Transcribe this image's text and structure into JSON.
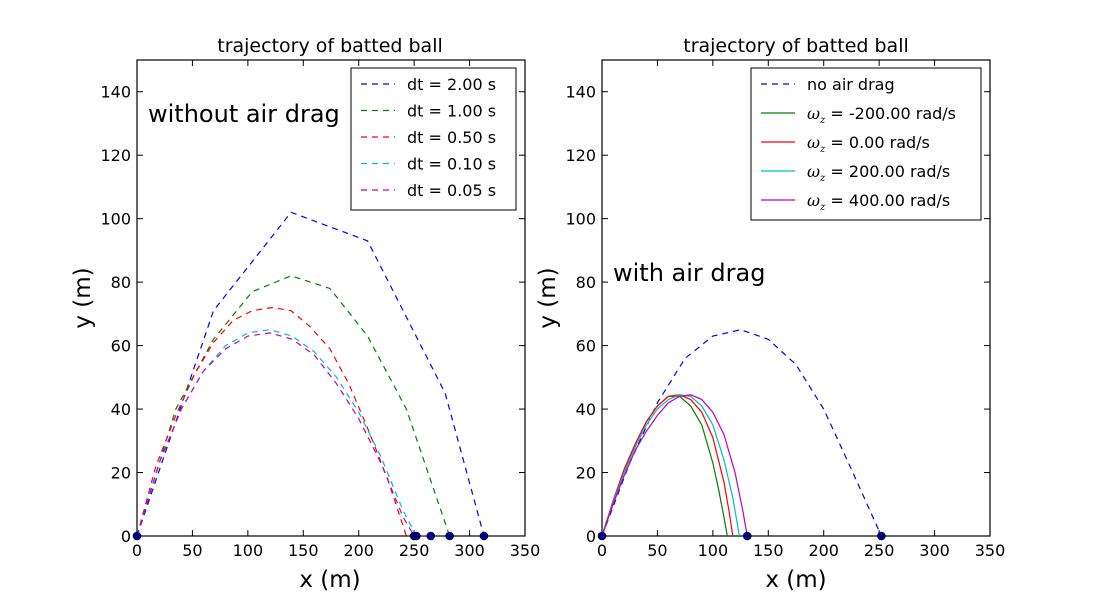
{
  "chart_data": [
    {
      "type": "line",
      "title": "trajectory of batted ball",
      "xlabel": "x (m)",
      "ylabel": "y (m)",
      "xlim": [
        0,
        350
      ],
      "ylim": [
        0,
        150
      ],
      "xticks": [
        "0",
        "50",
        "100",
        "150",
        "200",
        "250",
        "300",
        "350"
      ],
      "yticks": [
        "0",
        "20",
        "40",
        "60",
        "80",
        "100",
        "120",
        "140"
      ],
      "annotation": "without air drag",
      "legend_position": "top-right",
      "series": [
        {
          "name": "dt = 2.00 s",
          "color": "#0000ff",
          "dash": "dashed",
          "x": [
            0,
            69,
            139,
            208,
            278,
            313
          ],
          "y": [
            0,
            71,
            102,
            93,
            45,
            0
          ]
        },
        {
          "name": "dt = 1.00 s",
          "color": "#008000",
          "dash": "dashed",
          "x": [
            0,
            35,
            69,
            104,
            139,
            174,
            208,
            243,
            282
          ],
          "y": [
            0,
            40,
            62,
            77,
            82,
            78,
            63,
            40,
            0
          ]
        },
        {
          "name": "dt = 0.50 s",
          "color": "#ff0000",
          "dash": "dashed",
          "x": [
            0,
            17,
            35,
            52,
            69,
            87,
            104,
            122,
            139,
            156,
            174,
            191,
            208,
            226,
            243,
            265
          ],
          "y": [
            0,
            22,
            38,
            51,
            61,
            68,
            71,
            72,
            71,
            66,
            59,
            48,
            34,
            18,
            0,
            0
          ]
        },
        {
          "name": "dt = 0.10 s",
          "color": "#00bfbf",
          "dash": "dashed",
          "x": [
            0,
            20,
            40,
            60,
            80,
            100,
            120,
            140,
            160,
            180,
            200,
            220,
            240,
            252
          ],
          "y": [
            0,
            23,
            40,
            52,
            60,
            64,
            65,
            63,
            58,
            50,
            39,
            25,
            8,
            0
          ]
        },
        {
          "name": "dt = 0.05 s",
          "color": "#bf00bf",
          "dash": "dashed",
          "x": [
            0,
            20,
            40,
            60,
            80,
            100,
            120,
            140,
            160,
            180,
            200,
            220,
            240,
            250
          ],
          "y": [
            0,
            23,
            40,
            52,
            59,
            63,
            64,
            62,
            57,
            48,
            37,
            23,
            6,
            0
          ]
        }
      ],
      "markers": {
        "color": "#00008b",
        "x": [
          0,
          250,
          252,
          265,
          282,
          313
        ],
        "y": [
          0,
          0,
          0,
          0,
          0,
          0
        ]
      }
    },
    {
      "type": "line",
      "title": "trajectory of batted ball",
      "xlabel": "x (m)",
      "ylabel": "y (m)",
      "xlim": [
        0,
        350
      ],
      "ylim": [
        0,
        150
      ],
      "xticks": [
        "0",
        "50",
        "100",
        "150",
        "200",
        "250",
        "300",
        "350"
      ],
      "yticks": [
        "0",
        "20",
        "40",
        "60",
        "80",
        "100",
        "120",
        "140"
      ],
      "annotation": "with air drag",
      "legend_position": "top-right",
      "series": [
        {
          "name": "no air drag",
          "legend_symbol": "",
          "legend_text": "no air drag",
          "color": "#0000ff",
          "dash": "dashed",
          "x": [
            0,
            25,
            50,
            75,
            100,
            125,
            150,
            175,
            200,
            225,
            252
          ],
          "y": [
            0,
            23,
            42,
            56,
            63,
            65,
            62,
            54,
            40,
            21,
            0
          ]
        },
        {
          "name": "ωz = -200.00 rad/s",
          "legend_symbol": "ω",
          "legend_sub": "z",
          "legend_text": " = -200.00 rad/s",
          "color": "#008000",
          "dash": "solid",
          "x": [
            0,
            10,
            20,
            30,
            40,
            50,
            60,
            70,
            80,
            90,
            100,
            105,
            110,
            113
          ],
          "y": [
            0,
            11,
            21,
            29,
            36,
            41,
            44,
            44,
            41,
            35,
            23,
            15,
            6,
            0
          ]
        },
        {
          "name": "ωz = 0.00 rad/s",
          "legend_symbol": "ω",
          "legend_sub": "z",
          "legend_text": " = 0.00 rad/s",
          "color": "#ff0000",
          "dash": "solid",
          "x": [
            0,
            10,
            20,
            30,
            40,
            50,
            60,
            70,
            80,
            90,
            100,
            110,
            115,
            118
          ],
          "y": [
            0,
            11,
            21,
            29,
            36,
            41,
            44,
            44.5,
            43,
            39,
            31,
            17,
            7,
            0
          ]
        },
        {
          "name": "ωz = 200.00 rad/s",
          "legend_symbol": "ω",
          "legend_sub": "z",
          "legend_text": " = 200.00 rad/s",
          "color": "#00bfbf",
          "dash": "solid",
          "x": [
            0,
            10,
            20,
            30,
            40,
            50,
            60,
            70,
            80,
            90,
            100,
            110,
            118,
            124
          ],
          "y": [
            0,
            10.5,
            20,
            28,
            35,
            40,
            43,
            44.5,
            44,
            41,
            35,
            24,
            12,
            0
          ]
        },
        {
          "name": "ωz = 400.00 rad/s",
          "legend_symbol": "ω",
          "legend_sub": "z",
          "legend_text": " = 400.00 rad/s",
          "color": "#bf00bf",
          "dash": "solid",
          "x": [
            0,
            10,
            20,
            30,
            40,
            50,
            60,
            70,
            80,
            90,
            100,
            110,
            120,
            127,
            131
          ],
          "y": [
            0,
            10,
            19,
            27,
            33,
            38,
            42,
            44,
            44.5,
            43,
            39,
            32,
            20,
            8,
            0
          ]
        }
      ],
      "markers": {
        "color": "#00008b",
        "x": [
          0,
          131,
          252
        ],
        "y": [
          0,
          0,
          0
        ]
      }
    }
  ]
}
